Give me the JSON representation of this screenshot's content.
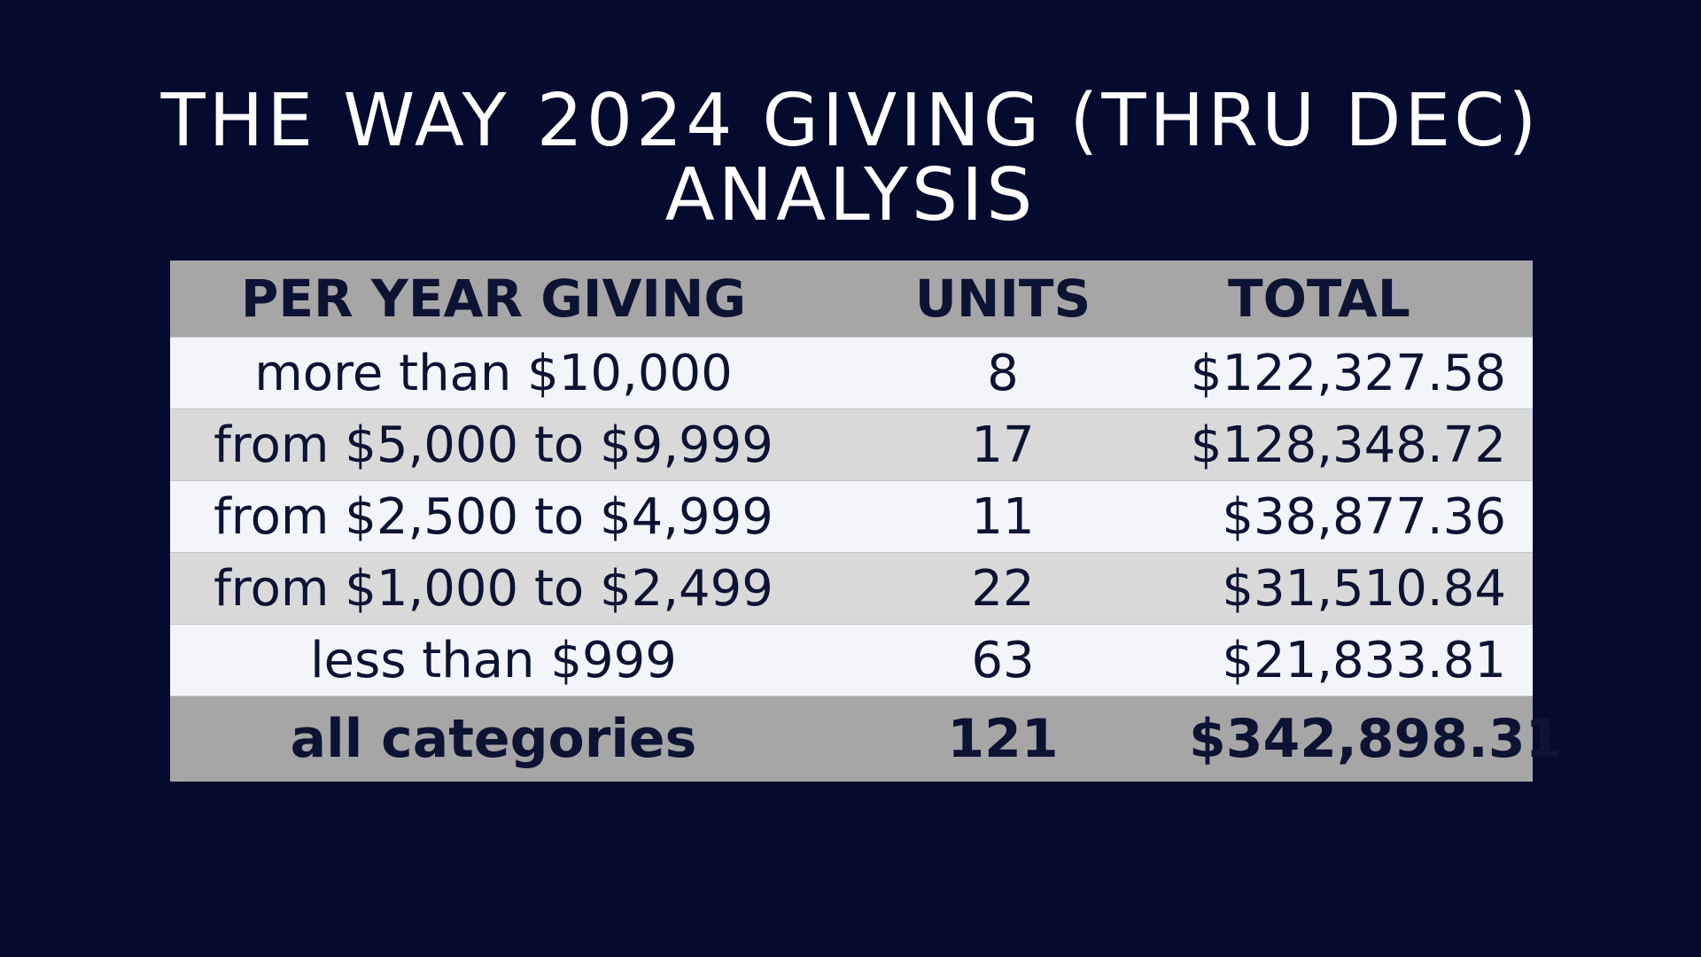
{
  "title": {
    "line1": "THE WAY 2024 GIVING (THRU DEC)",
    "line2": "ANALYSIS"
  },
  "table": {
    "headers": [
      "PER YEAR GIVING",
      "UNITS",
      "TOTAL"
    ],
    "rows": [
      {
        "category": "more than $10,000",
        "units": "8",
        "total": "$122,327.58"
      },
      {
        "category": "from $5,000 to $9,999",
        "units": "17",
        "total": "$128,348.72"
      },
      {
        "category": "from $2,500 to $4,999",
        "units": "11",
        "total": "$38,877.36"
      },
      {
        "category": "from $1,000 to $2,499",
        "units": "22",
        "total": "$31,510.84"
      },
      {
        "category": "less than $999",
        "units": "63",
        "total": "$21,833.81"
      }
    ],
    "summary": {
      "category": "all categories",
      "units": "121",
      "total": "$342,898.31"
    }
  },
  "colors": {
    "background": "#050b2e",
    "header_fill": "#a6a6a6",
    "row_light": "#f3f5fb",
    "row_dark": "#d9d9d9",
    "text_dark": "#0d1433",
    "title_text": "#ffffff"
  }
}
